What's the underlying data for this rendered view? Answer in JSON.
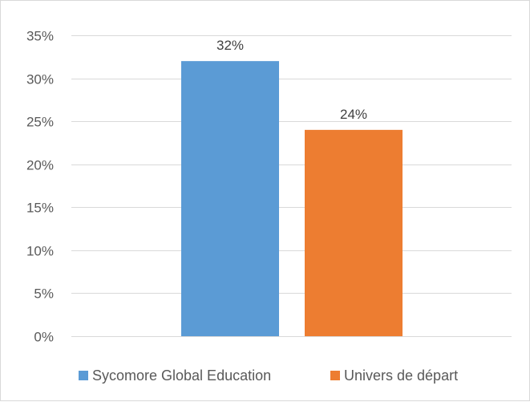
{
  "chart_data": {
    "type": "bar",
    "categories": [
      ""
    ],
    "series": [
      {
        "name": "Sycomore Global Education",
        "values": [
          32
        ],
        "color": "#5b9bd5"
      },
      {
        "name": "Univers de départ",
        "values": [
          24
        ],
        "color": "#ed7d31"
      }
    ],
    "data_labels": [
      "32%",
      "24%"
    ],
    "y_ticks": [
      "0%",
      "5%",
      "10%",
      "15%",
      "20%",
      "25%",
      "30%",
      "35%"
    ],
    "y_tick_values": [
      0,
      5,
      10,
      15,
      20,
      25,
      30,
      35
    ],
    "ylim": [
      0,
      35
    ],
    "value_suffix": "%",
    "title": "",
    "xlabel": "",
    "ylabel": "",
    "grid": true,
    "legend": "bottom",
    "colors": {
      "grid": "#d9d9d9",
      "axis": "#d9d9d9",
      "text": "#595959"
    }
  }
}
